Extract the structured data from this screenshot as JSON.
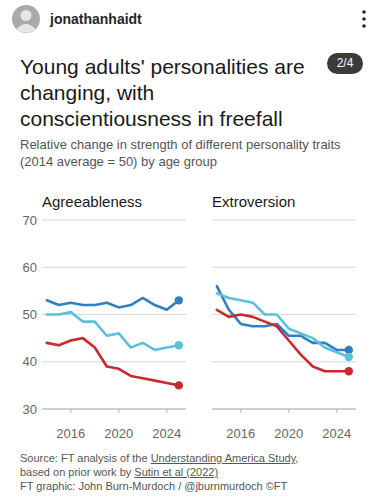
{
  "header": {
    "username": "jonathanhaidt",
    "page": "2/4"
  },
  "title": "Young adults' personalities are changing, with conscientiousness in freefall",
  "subtitle": "Relative change in strength of different personality traits (2014 average = 50) by age group",
  "chart_data": [
    {
      "type": "line",
      "title": "Agreeableness",
      "x": [
        2014,
        2015,
        2016,
        2017,
        2018,
        2019,
        2020,
        2021,
        2022,
        2023,
        2024,
        2025
      ],
      "xlim": [
        2013.6,
        2025.6
      ],
      "xticks": [
        2016,
        2020,
        2024
      ],
      "ylim": [
        30,
        70
      ],
      "yticks": [
        30,
        40,
        50,
        60,
        70
      ],
      "grid": true,
      "marker": "end",
      "series": [
        {
          "color": "#2f80c3",
          "values": [
            53,
            52,
            52.5,
            52,
            52,
            52.5,
            51.5,
            52,
            53.5,
            52,
            51,
            53
          ]
        },
        {
          "color": "#5cc0dc",
          "values": [
            50,
            50,
            50.5,
            48.5,
            48.5,
            45.5,
            46,
            43,
            44,
            42.5,
            43,
            43.5
          ]
        },
        {
          "color": "#c92a2e",
          "values": [
            44,
            43.5,
            44.5,
            45,
            43,
            39,
            38.5,
            37,
            36.5,
            36,
            35.5,
            35
          ]
        }
      ]
    },
    {
      "type": "line",
      "title": "Extroversion",
      "x": [
        2014,
        2015,
        2016,
        2017,
        2018,
        2019,
        2020,
        2021,
        2022,
        2023,
        2024,
        2025
      ],
      "xlim": [
        2013.6,
        2025.6
      ],
      "xticks": [
        2016,
        2020,
        2024
      ],
      "ylim": [
        30,
        70
      ],
      "yticks": [
        30,
        40,
        50,
        60,
        70
      ],
      "grid": true,
      "marker": "end",
      "tick_labels": "x",
      "series": [
        {
          "color": "#2f80c3",
          "values": [
            56,
            51,
            48,
            47.5,
            47.5,
            48,
            45.5,
            45.5,
            44,
            44,
            42.5,
            42.5
          ]
        },
        {
          "color": "#5cc0dc",
          "values": [
            54.5,
            53.5,
            53,
            52.5,
            50,
            50,
            47,
            46,
            45,
            43,
            42,
            41
          ]
        },
        {
          "color": "#c92a2e",
          "values": [
            51,
            49.5,
            50,
            49.5,
            48.5,
            47.5,
            44.5,
            41.5,
            39,
            38,
            38,
            38
          ]
        }
      ]
    }
  ],
  "source": [
    [
      {
        "text": "Source: FT analysis of the "
      },
      {
        "text": "Understanding America Study",
        "link": true
      },
      {
        "text": ","
      }
    ],
    [
      {
        "text": "based on prior work by "
      },
      {
        "text": "Sutin et al (2022)",
        "link": true
      }
    ]
  ],
  "credit": "FT graphic: John Burn-Murdoch / @jburnmurdoch ©FT"
}
